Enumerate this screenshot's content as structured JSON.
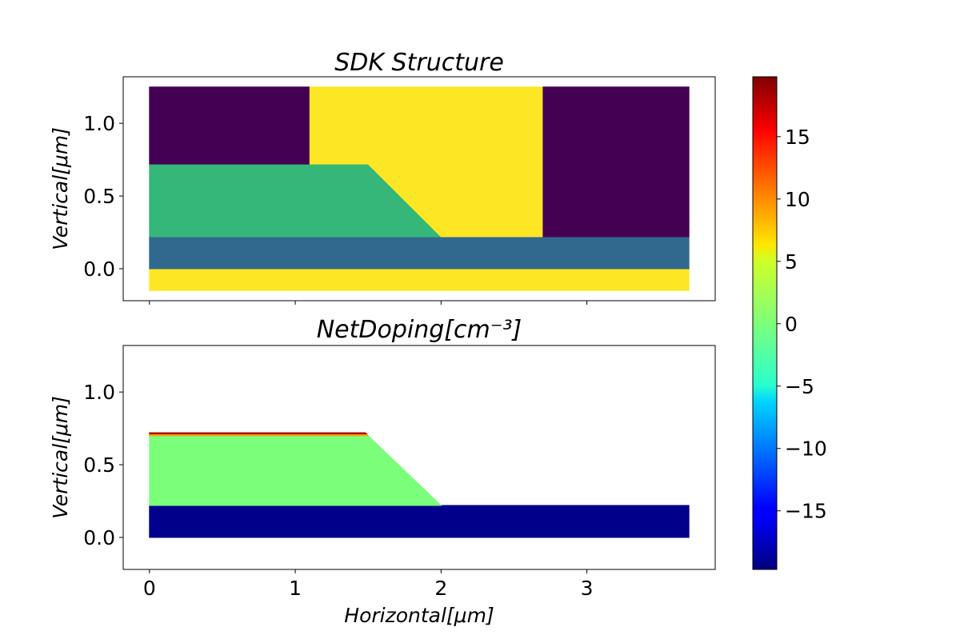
{
  "chart_data": [
    {
      "type": "heatmap",
      "title": "SDK   Structure",
      "xlabel": "",
      "ylabel": "Vertical[μm]",
      "xlim": [
        -0.18,
        3.88
      ],
      "ylim": [
        -0.22,
        1.32
      ],
      "x_ticks": [
        0,
        1,
        2,
        3
      ],
      "y_ticks": [
        0.0,
        0.5,
        1.0
      ],
      "y_tick_labels": [
        "0.0",
        "0.5",
        "1.0"
      ],
      "regions": [
        {
          "color": "#fde725",
          "polygon": [
            [
              0,
              -0.15
            ],
            [
              3.7,
              -0.15
            ],
            [
              3.7,
              0.0
            ],
            [
              0,
              0.0
            ]
          ]
        },
        {
          "color": "#31688e",
          "polygon": [
            [
              0,
              0.0
            ],
            [
              3.7,
              0.0
            ],
            [
              3.7,
              0.22
            ],
            [
              0,
              0.22
            ]
          ]
        },
        {
          "color": "#35b779",
          "polygon": [
            [
              0,
              0.22
            ],
            [
              2.0,
              0.22
            ],
            [
              1.5,
              0.72
            ],
            [
              0,
              0.72
            ]
          ]
        },
        {
          "color": "#440154",
          "polygon": [
            [
              0,
              0.72
            ],
            [
              1.1,
              0.72
            ],
            [
              1.1,
              1.25
            ],
            [
              0,
              1.25
            ]
          ]
        },
        {
          "color": "#fde725",
          "polygon": [
            [
              1.1,
              0.72
            ],
            [
              1.5,
              0.72
            ],
            [
              2.0,
              0.22
            ],
            [
              2.7,
              0.22
            ],
            [
              2.7,
              1.25
            ],
            [
              1.1,
              1.25
            ]
          ]
        },
        {
          "color": "#440154",
          "polygon": [
            [
              2.7,
              0.22
            ],
            [
              3.7,
              0.22
            ],
            [
              3.7,
              1.25
            ],
            [
              2.7,
              1.25
            ]
          ]
        }
      ]
    },
    {
      "type": "heatmap",
      "title": "NetDoping[cm⁻³]",
      "xlabel": "Horizontal[μm]",
      "ylabel": "Vertical[μm]",
      "xlim": [
        -0.18,
        3.88
      ],
      "ylim": [
        -0.22,
        1.32
      ],
      "x_ticks": [
        0,
        1,
        2,
        3
      ],
      "x_tick_labels": [
        "0",
        "1",
        "2",
        "3"
      ],
      "y_ticks": [
        0.0,
        0.5,
        1.0
      ],
      "y_tick_labels": [
        "0.0",
        "0.5",
        "1.0"
      ],
      "regions": [
        {
          "value": -19.5,
          "color": "#00008b",
          "polygon": [
            [
              0,
              0.0
            ],
            [
              3.7,
              0.0
            ],
            [
              3.7,
              0.22
            ],
            [
              0,
              0.22
            ]
          ]
        },
        {
          "value": 0.3,
          "color": "#7bff7b",
          "polygon": [
            [
              0,
              0.22
            ],
            [
              2.0,
              0.22
            ],
            [
              1.5,
              0.7
            ],
            [
              0,
              0.7
            ]
          ]
        },
        {
          "value": 10,
          "color": "#ff9900",
          "polygon": [
            [
              0,
              0.7
            ],
            [
              1.5,
              0.7
            ],
            [
              1.48,
              0.72
            ],
            [
              0,
              0.72
            ]
          ]
        },
        {
          "value": 19,
          "color": "#a30000",
          "polygon": [
            [
              0,
              0.712
            ],
            [
              1.49,
              0.712
            ],
            [
              1.48,
              0.72
            ],
            [
              0,
              0.72
            ]
          ]
        }
      ]
    }
  ],
  "colorbar": {
    "colormap": "jet",
    "min": -19.7,
    "max": 19.8,
    "ticks": [
      15,
      10,
      5,
      0,
      -5,
      -10,
      -15
    ],
    "tick_labels": [
      "15",
      "10",
      "5",
      "0",
      "−5",
      "−10",
      "−15"
    ]
  }
}
